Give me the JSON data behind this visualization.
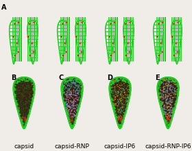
{
  "background_color": "#f0ede8",
  "panel_labels_row1": [
    "A"
  ],
  "panel_labels_row2": [
    "B",
    "C",
    "D",
    "E"
  ],
  "labels": [
    "capsid",
    "capsid-RNP",
    "capsid-IP6",
    "capsid-RNP-IP6"
  ],
  "label_fontsize": 6.5,
  "panel_label_fontsize": 7,
  "capsid_green": "#22cc22",
  "capsid_dark_green": "#008800",
  "capsid_red": "#ee2222",
  "capsid_white": "#ffffff",
  "rnp_teal": "#44aaaa",
  "rnp_pink": "#cc88cc",
  "ip6_orange": "#ffaa00",
  "dark_brown": "#553311",
  "fig_width": 2.8,
  "fig_height": 2.21
}
